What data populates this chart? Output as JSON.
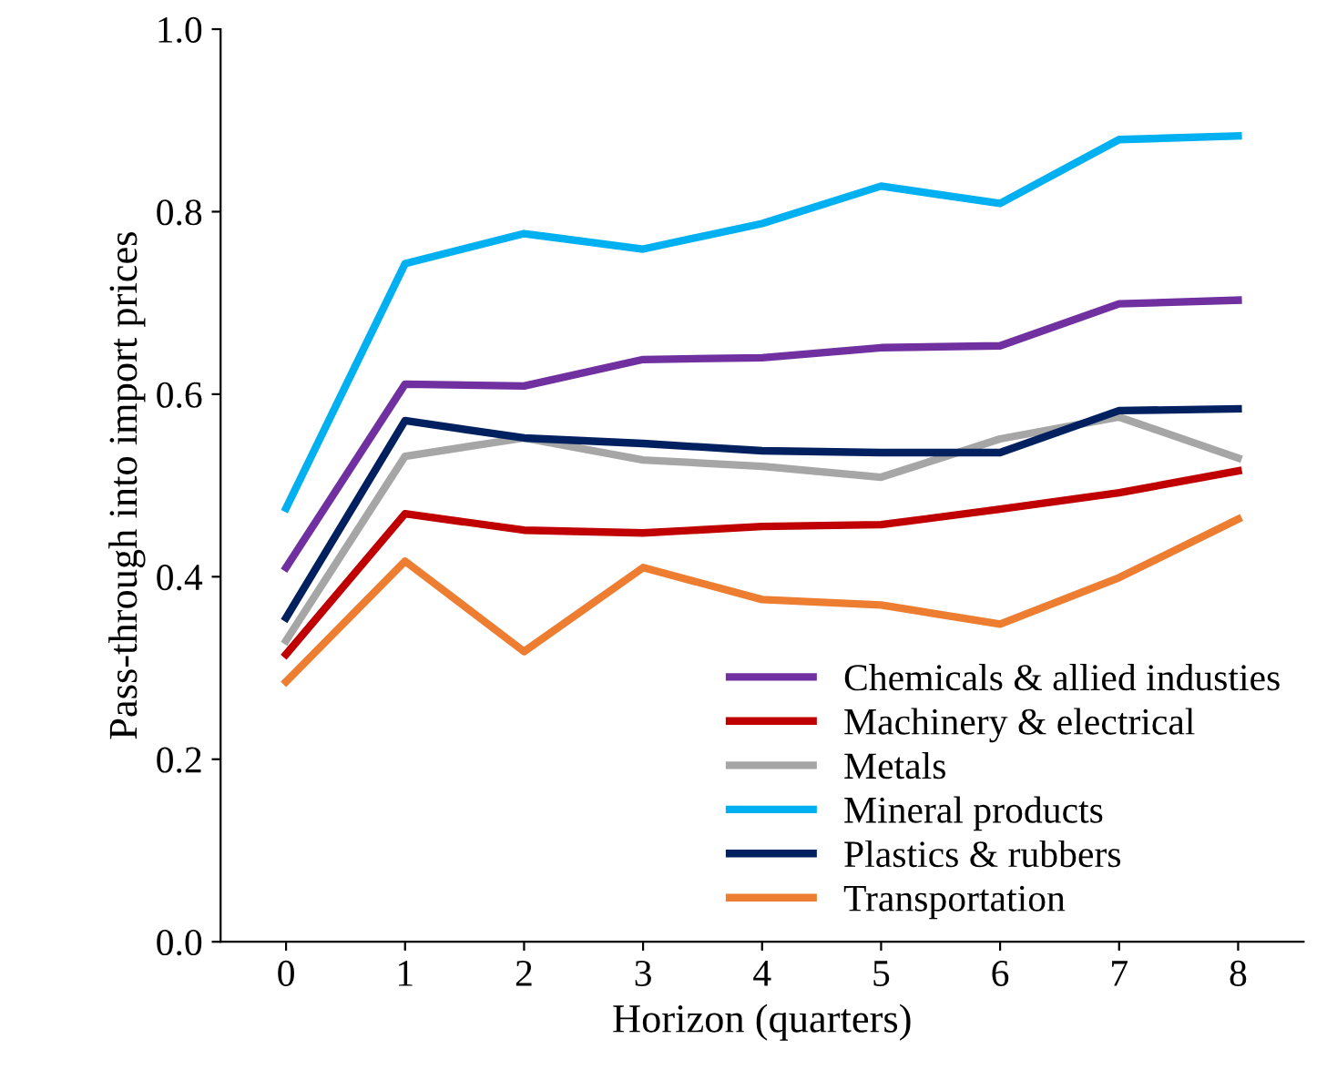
{
  "chart_data": {
    "type": "line",
    "xlabel": "Horizon (quarters)",
    "ylabel": "Pass-through into import prices",
    "x": [
      0,
      1,
      2,
      3,
      4,
      5,
      6,
      7,
      8
    ],
    "series": [
      {
        "name": "Chemicals & allied industies",
        "color": "#7030a0",
        "values": [
          0.41,
          0.611,
          0.609,
          0.638,
          0.64,
          0.651,
          0.653,
          0.699,
          0.703
        ]
      },
      {
        "name": "Machinery & electrical",
        "color": "#c00000",
        "values": [
          0.315,
          0.469,
          0.451,
          0.448,
          0.455,
          0.457,
          0.474,
          0.492,
          0.516
        ]
      },
      {
        "name": "Metals",
        "color": "#a6a6a6",
        "values": [
          0.33,
          0.532,
          0.552,
          0.528,
          0.521,
          0.509,
          0.551,
          0.575,
          0.53
        ]
      },
      {
        "name": "Mineral products",
        "color": "#00b0f0",
        "values": [
          0.475,
          0.743,
          0.776,
          0.759,
          0.787,
          0.828,
          0.809,
          0.879,
          0.883
        ]
      },
      {
        "name": "Plastics & rubbers",
        "color": "#002060",
        "values": [
          0.355,
          0.571,
          0.552,
          0.546,
          0.538,
          0.536,
          0.536,
          0.582,
          0.584
        ]
      },
      {
        "name": "Transportation",
        "color": "#ed7d31",
        "values": [
          0.285,
          0.417,
          0.318,
          0.41,
          0.375,
          0.369,
          0.348,
          0.399,
          0.463
        ]
      }
    ],
    "xlim": [
      -0.55,
      8.55
    ],
    "xticks": [
      0,
      1,
      2,
      3,
      4,
      5,
      6,
      7,
      8
    ],
    "ylim": [
      0.0,
      1.0
    ],
    "yticks": [
      {
        "value": 0.0,
        "label": "0.0"
      },
      {
        "value": 0.2,
        "label": "0.2"
      },
      {
        "value": 0.4,
        "label": "0.4"
      },
      {
        "value": 0.6,
        "label": "0.6"
      },
      {
        "value": 0.8,
        "label": "0.8"
      },
      {
        "value": 1.0,
        "label": "1.0"
      }
    ],
    "grid": false,
    "legend": "bottom right",
    "marker": "none",
    "line_style": "solid"
  }
}
